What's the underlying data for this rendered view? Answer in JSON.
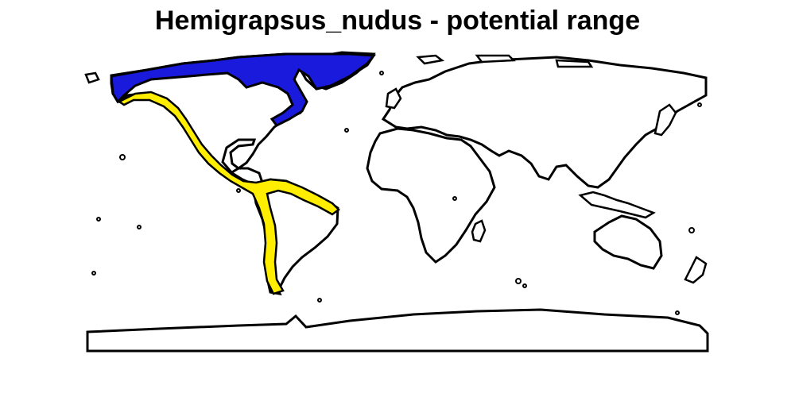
{
  "map": {
    "title": "Hemigrapsus_nudus - potential range",
    "colors": {
      "background": "#ffffff",
      "coastline": "#000000",
      "range_north": "#1a1adc",
      "range_pacific": "#ffee00"
    }
  }
}
